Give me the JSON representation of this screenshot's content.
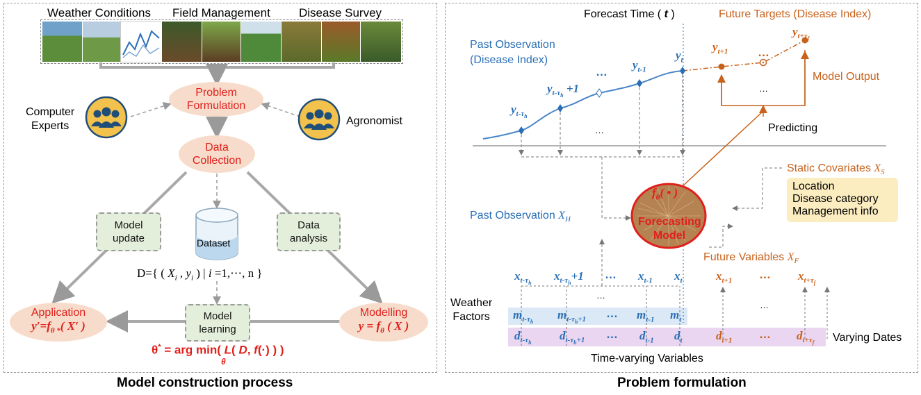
{
  "left": {
    "caption": "Model  construction process",
    "categories": [
      "Weather Conditions",
      "Field Management",
      "Disease Survey"
    ],
    "problem_formulation": [
      "Problem",
      "Formulation"
    ],
    "data_collection": [
      "Data",
      "Collection"
    ],
    "computer_experts": [
      "Computer",
      "Experts"
    ],
    "agronomist": "Agronomist",
    "model_update": [
      "Model",
      "update"
    ],
    "dataset": "Dataset",
    "data_analysis": [
      "Data",
      "analysis"
    ],
    "dataset_formula": "D={ ( Xi , yi ) | i =1,⋯, n }",
    "application": "Application",
    "application_formula": "y′=fθ *( X′ )",
    "model_learning": [
      "Model",
      "learning"
    ],
    "modelling": "Modelling",
    "modelling_formula": "y = fθ ( X )",
    "argmin_formula": "θ* = arg min( L( D, f(·) ) )",
    "argmin_sub": "θ"
  },
  "right": {
    "caption": "Problem formulation",
    "forecast_time": "Forecast Time ( t )",
    "future_targets": "Future Targets (Disease Index)",
    "past_observation_index": [
      "Past Observation",
      "(Disease Index)"
    ],
    "model_output": "Model Output",
    "predicting": "Predicting",
    "static_covariates": "Static Covariates Xs",
    "static_items": [
      "Location",
      "Disease category",
      "Management info"
    ],
    "past_observation_x": "Past Observation XH",
    "model_func": "fθ( • )",
    "model_name": [
      "Forecasting",
      "Model"
    ],
    "future_variables": "Future Variables XF",
    "weather_factors": [
      "Weather",
      "Factors"
    ],
    "varying_dates": "Varying Dates",
    "time_varying": "Time-varying Variables",
    "ellipsis": "…",
    "y_labels": [
      "y t-τh",
      "y t-τh +1",
      "y t-1",
      "y t",
      "y t+1",
      "y t+τf"
    ],
    "x_labels": [
      "x t-τh",
      "x t-τh +1",
      "x t-1",
      "x t",
      "x t+1",
      "x t+τf"
    ],
    "m_labels": [
      "m t-τh",
      "m t-τh +1",
      "m t-1",
      "m t"
    ],
    "d_labels": [
      "d t-τh",
      "d t-τh +1",
      "d t-1",
      "d t",
      "d t+1",
      "d t+τf"
    ]
  },
  "colors": {
    "red": "#e0201b",
    "blue": "#2a6fb5",
    "orange": "#c8611b",
    "oval_fill": "#f8dccb",
    "green_box": "#e3efdb",
    "blue_band": "#dbe9f6",
    "purple_band": "#ead6f0",
    "static_box": "#fbedc0",
    "icon_fill": "#f2c24d",
    "icon_people": "#1f4e79"
  },
  "icons": [
    "people-group-icon",
    "database-cylinder-icon",
    "neural-network-ellipse"
  ]
}
